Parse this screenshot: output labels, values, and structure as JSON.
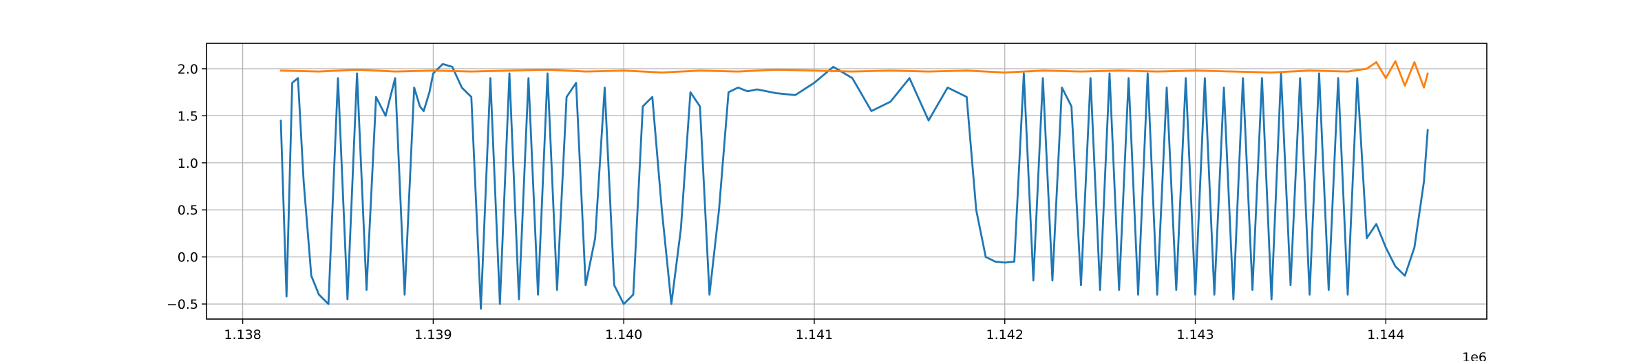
{
  "chart_data": {
    "type": "line",
    "title": "",
    "xlabel": "",
    "ylabel": "",
    "x_offset_label": "1e6",
    "xlim": [
      1.13781,
      1.14453
    ],
    "ylim": [
      -0.66,
      2.27
    ],
    "grid": true,
    "legend": "none",
    "x_ticks": [
      1.138,
      1.139,
      1.14,
      1.141,
      1.142,
      1.143,
      1.144
    ],
    "x_tick_labels": [
      "1.138",
      "1.139",
      "1.140",
      "1.141",
      "1.142",
      "1.143",
      "1.144"
    ],
    "y_ticks": [
      -0.5,
      0.0,
      0.5,
      1.0,
      1.5,
      2.0
    ],
    "y_tick_labels": [
      "−0.5",
      "0.0",
      "0.5",
      "1.0",
      "1.5",
      "2.0"
    ],
    "series": [
      {
        "color": "#1f77b4",
        "x": [
          1.1382,
          1.13823,
          1.13826,
          1.13829,
          1.13832,
          1.13836,
          1.1384,
          1.13845,
          1.1385,
          1.13855,
          1.1386,
          1.13865,
          1.1387,
          1.13875,
          1.1388,
          1.13885,
          1.1389,
          1.13893,
          1.13895,
          1.13898,
          1.139,
          1.13905,
          1.1391,
          1.13915,
          1.1392,
          1.13925,
          1.1393,
          1.13935,
          1.1394,
          1.13945,
          1.1395,
          1.13955,
          1.1396,
          1.13965,
          1.1397,
          1.13975,
          1.1398,
          1.13985,
          1.1399,
          1.13995,
          1.14,
          1.14005,
          1.1401,
          1.14015,
          1.1402,
          1.14025,
          1.1403,
          1.14035,
          1.1404,
          1.14045,
          1.1405,
          1.14055,
          1.1406,
          1.14065,
          1.1407,
          1.1408,
          1.1409,
          1.141,
          1.1411,
          1.1412,
          1.1413,
          1.1414,
          1.1415,
          1.1416,
          1.1417,
          1.1418,
          1.14185,
          1.1419,
          1.14195,
          1.142,
          1.14205,
          1.1421,
          1.14215,
          1.1422,
          1.14225,
          1.1423,
          1.14235,
          1.1424,
          1.14245,
          1.1425,
          1.14255,
          1.1426,
          1.14265,
          1.1427,
          1.14275,
          1.1428,
          1.14285,
          1.1429,
          1.14295,
          1.143,
          1.14305,
          1.1431,
          1.14315,
          1.1432,
          1.14325,
          1.1433,
          1.14335,
          1.1434,
          1.14345,
          1.1435,
          1.14355,
          1.1436,
          1.14365,
          1.1437,
          1.14375,
          1.1438,
          1.14385,
          1.1439,
          1.14395,
          1.144,
          1.14405,
          1.1441,
          1.14415,
          1.1442,
          1.14422
        ],
        "y": [
          1.45,
          -0.42,
          1.85,
          1.9,
          0.8,
          -0.2,
          -0.4,
          -0.5,
          1.9,
          -0.45,
          1.95,
          -0.35,
          1.7,
          1.5,
          1.9,
          -0.4,
          1.8,
          1.6,
          1.55,
          1.75,
          1.95,
          2.05,
          2.02,
          1.8,
          1.7,
          -0.55,
          1.9,
          -0.5,
          1.95,
          -0.45,
          1.9,
          -0.4,
          1.95,
          -0.35,
          1.7,
          1.85,
          -0.3,
          0.2,
          1.8,
          -0.3,
          -0.5,
          -0.4,
          1.6,
          1.7,
          0.5,
          -0.5,
          0.3,
          1.75,
          1.6,
          -0.4,
          0.5,
          1.75,
          1.8,
          1.76,
          1.78,
          1.74,
          1.72,
          1.85,
          2.02,
          1.9,
          1.55,
          1.65,
          1.9,
          1.45,
          1.8,
          1.7,
          0.5,
          0.0,
          -0.05,
          -0.06,
          -0.05,
          1.95,
          -0.25,
          1.9,
          -0.25,
          1.8,
          1.6,
          -0.3,
          1.9,
          -0.35,
          1.95,
          -0.35,
          1.9,
          -0.4,
          1.95,
          -0.4,
          1.8,
          -0.35,
          1.9,
          -0.4,
          1.9,
          -0.4,
          1.8,
          -0.45,
          1.9,
          -0.35,
          1.9,
          -0.45,
          1.95,
          -0.3,
          1.9,
          -0.4,
          1.95,
          -0.35,
          1.9,
          -0.4,
          1.9,
          0.2,
          0.35,
          0.1,
          -0.1,
          -0.2,
          0.1,
          0.8,
          1.35
        ]
      },
      {
        "color": "#ff7f0e",
        "x": [
          1.1382,
          1.1384,
          1.1386,
          1.1388,
          1.139,
          1.1392,
          1.1394,
          1.1396,
          1.1398,
          1.14,
          1.1402,
          1.1404,
          1.1406,
          1.1408,
          1.141,
          1.1412,
          1.1414,
          1.1416,
          1.1418,
          1.142,
          1.1422,
          1.1424,
          1.1426,
          1.1428,
          1.143,
          1.1432,
          1.1434,
          1.1436,
          1.1438,
          1.1439,
          1.14395,
          1.144,
          1.14405,
          1.1441,
          1.14415,
          1.1442,
          1.14422
        ],
        "y": [
          1.98,
          1.97,
          1.99,
          1.97,
          1.98,
          1.97,
          1.98,
          1.99,
          1.97,
          1.98,
          1.96,
          1.98,
          1.97,
          1.99,
          1.98,
          1.97,
          1.98,
          1.97,
          1.98,
          1.96,
          1.98,
          1.97,
          1.98,
          1.97,
          1.98,
          1.97,
          1.96,
          1.98,
          1.97,
          2.0,
          2.07,
          1.9,
          2.08,
          1.82,
          2.07,
          1.8,
          1.95
        ]
      }
    ]
  }
}
